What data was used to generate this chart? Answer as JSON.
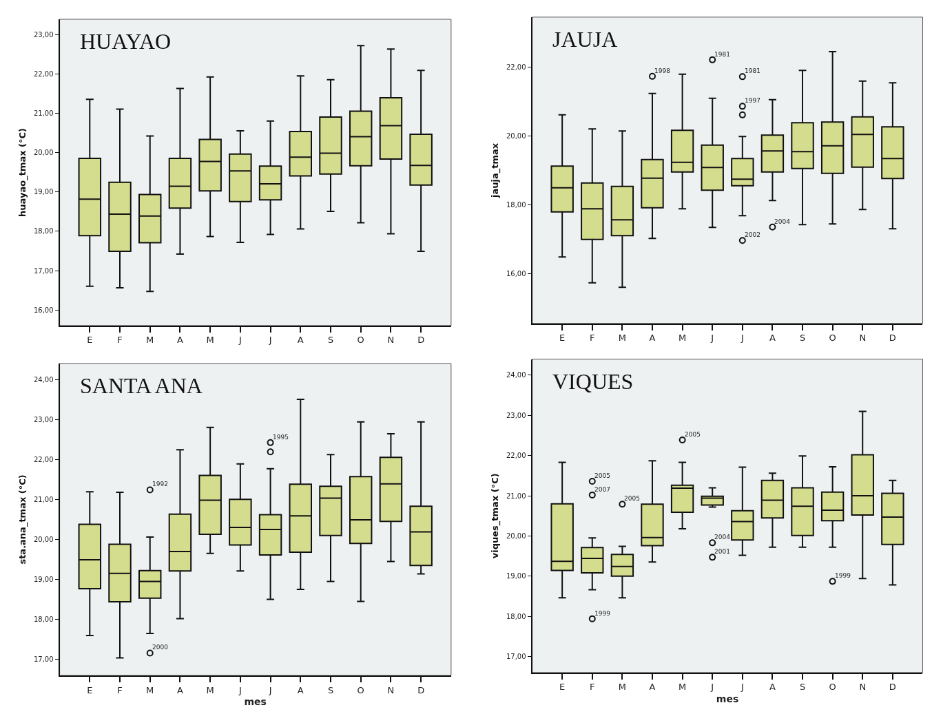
{
  "chart_data": [
    {
      "type": "box",
      "title": "HUAYAO",
      "ylabel": "huayao_tmax (°C)",
      "categories": [
        "E",
        "F",
        "M",
        "A",
        "M",
        "J",
        "J",
        "A",
        "S",
        "O",
        "N",
        "D"
      ],
      "ylim": [
        15.6,
        23.4
      ],
      "yticks": [
        {
          "value": 16,
          "label": "16,00"
        },
        {
          "value": 17,
          "label": "17,00"
        },
        {
          "value": 18,
          "label": "18,00"
        },
        {
          "value": 19,
          "label": "19,00"
        },
        {
          "value": 20,
          "label": "20,00"
        },
        {
          "value": 21,
          "label": "21,00"
        },
        {
          "value": 22,
          "label": "22,00"
        },
        {
          "value": 23,
          "label": "23,00"
        }
      ],
      "grid": false,
      "series": [
        {
          "color": "#d4dc8e",
          "boxes": [
            {
              "low": 16.6,
              "q1": 17.89,
              "median": 18.82,
              "q3": 19.86,
              "high": 21.36
            },
            {
              "low": 16.56,
              "q1": 17.49,
              "median": 18.44,
              "q3": 19.25,
              "high": 21.11
            },
            {
              "low": 16.47,
              "q1": 17.71,
              "median": 18.39,
              "q3": 18.94,
              "high": 20.43
            },
            {
              "low": 17.42,
              "q1": 18.59,
              "median": 19.15,
              "q3": 19.86,
              "high": 21.64
            },
            {
              "low": 17.87,
              "q1": 19.03,
              "median": 19.78,
              "q3": 20.34,
              "high": 21.93
            },
            {
              "low": 17.72,
              "q1": 18.76,
              "median": 19.54,
              "q3": 19.97,
              "high": 20.56
            },
            {
              "low": 17.92,
              "q1": 18.8,
              "median": 19.21,
              "q3": 19.66,
              "high": 20.81
            },
            {
              "low": 18.06,
              "q1": 19.41,
              "median": 19.89,
              "q3": 20.54,
              "high": 21.96
            },
            {
              "low": 18.51,
              "q1": 19.46,
              "median": 19.99,
              "q3": 20.91,
              "high": 21.86
            },
            {
              "low": 18.22,
              "q1": 19.67,
              "median": 20.41,
              "q3": 21.06,
              "high": 22.73
            },
            {
              "low": 17.94,
              "q1": 19.84,
              "median": 20.69,
              "q3": 21.4,
              "high": 22.64
            },
            {
              "low": 17.49,
              "q1": 19.18,
              "median": 19.68,
              "q3": 20.47,
              "high": 22.1
            }
          ]
        }
      ]
    },
    {
      "type": "box",
      "title": "JAUJA",
      "ylabel": "jauja_tmax",
      "categories": [
        "E",
        "F",
        "M",
        "A",
        "M",
        "J",
        "J",
        "A",
        "S",
        "O",
        "N",
        "D"
      ],
      "ylim": [
        14.55,
        23.45
      ],
      "yticks": [
        {
          "value": 16,
          "label": "16,00"
        },
        {
          "value": 18,
          "label": "18,00"
        },
        {
          "value": 20,
          "label": "20,00"
        },
        {
          "value": 22,
          "label": "22,00"
        }
      ],
      "grid": false,
      "annotations": [
        "1998",
        "1981",
        "1981",
        "1997",
        "2002",
        "2004"
      ],
      "series": [
        {
          "color": "#d4dc8e",
          "boxes": [
            {
              "low": 16.48,
              "q1": 17.79,
              "median": 18.49,
              "q3": 19.12,
              "high": 20.61
            },
            {
              "low": 15.73,
              "q1": 16.99,
              "median": 17.88,
              "q3": 18.63,
              "high": 20.2
            },
            {
              "low": 15.6,
              "q1": 17.1,
              "median": 17.56,
              "q3": 18.53,
              "high": 20.14
            },
            {
              "low": 17.02,
              "q1": 17.91,
              "median": 18.77,
              "q3": 19.31,
              "high": 21.23,
              "outliers": [
                21.73
              ]
            },
            {
              "low": 17.88,
              "q1": 18.95,
              "median": 19.23,
              "q3": 20.16,
              "high": 21.79
            },
            {
              "low": 17.34,
              "q1": 18.42,
              "median": 19.08,
              "q3": 19.73,
              "high": 21.09,
              "outliers": [
                22.21
              ]
            },
            {
              "low": 17.68,
              "q1": 18.55,
              "median": 18.74,
              "q3": 19.34,
              "high": 19.98,
              "outliers": [
                21.72,
                20.86,
                20.61,
                16.96
              ]
            },
            {
              "low": 18.12,
              "q1": 18.95,
              "median": 19.56,
              "q3": 20.02,
              "high": 21.05,
              "outliers": [
                17.35
              ]
            },
            {
              "low": 17.42,
              "q1": 19.05,
              "median": 19.54,
              "q3": 20.38,
              "high": 21.9
            },
            {
              "low": 17.44,
              "q1": 18.91,
              "median": 19.71,
              "q3": 20.4,
              "high": 22.45
            },
            {
              "low": 17.86,
              "q1": 19.09,
              "median": 20.04,
              "q3": 20.55,
              "high": 21.59
            },
            {
              "low": 17.3,
              "q1": 18.76,
              "median": 19.34,
              "q3": 20.26,
              "high": 21.54
            }
          ]
        }
      ]
    },
    {
      "type": "box",
      "title": "SANTA ANA",
      "xlabel": "mes",
      "ylabel": "sta.ana_tmax (°C)",
      "categories": [
        "E",
        "F",
        "M",
        "A",
        "M",
        "J",
        "J",
        "A",
        "S",
        "O",
        "N",
        "D"
      ],
      "ylim": [
        16.6,
        24.4
      ],
      "yticks": [
        {
          "value": 17,
          "label": "17,00"
        },
        {
          "value": 18,
          "label": "18,00"
        },
        {
          "value": 19,
          "label": "19,00"
        },
        {
          "value": 20,
          "label": "20,00"
        },
        {
          "value": 21,
          "label": "21,00"
        },
        {
          "value": 22,
          "label": "22,00"
        },
        {
          "value": 23,
          "label": "23,00"
        },
        {
          "value": 24,
          "label": "24,00"
        }
      ],
      "grid": false,
      "annotations": [
        "1992",
        "2000",
        "1995"
      ],
      "series": [
        {
          "color": "#d4dc8e",
          "boxes": [
            {
              "low": 17.6,
              "q1": 18.77,
              "median": 19.49,
              "q3": 20.38,
              "high": 21.19
            },
            {
              "low": 17.04,
              "q1": 18.44,
              "median": 19.15,
              "q3": 19.88,
              "high": 21.18
            },
            {
              "low": 17.65,
              "q1": 18.53,
              "median": 18.95,
              "q3": 19.22,
              "high": 20.06,
              "outliers": [
                21.24,
                17.16
              ]
            },
            {
              "low": 18.02,
              "q1": 19.21,
              "median": 19.7,
              "q3": 20.63,
              "high": 22.24
            },
            {
              "low": 19.65,
              "q1": 20.13,
              "median": 20.98,
              "q3": 21.6,
              "high": 22.8
            },
            {
              "low": 19.21,
              "q1": 19.86,
              "median": 20.3,
              "q3": 21.0,
              "high": 21.89
            },
            {
              "low": 18.5,
              "q1": 19.61,
              "median": 20.25,
              "q3": 20.62,
              "high": 21.77,
              "outliers": [
                22.42,
                22.19
              ]
            },
            {
              "low": 18.75,
              "q1": 19.68,
              "median": 20.59,
              "q3": 21.38,
              "high": 23.5
            },
            {
              "low": 18.95,
              "q1": 20.1,
              "median": 21.03,
              "q3": 21.33,
              "high": 22.12
            },
            {
              "low": 18.45,
              "q1": 19.9,
              "median": 20.49,
              "q3": 21.57,
              "high": 22.94
            },
            {
              "low": 19.45,
              "q1": 20.45,
              "median": 21.39,
              "q3": 22.05,
              "high": 22.64
            },
            {
              "low": 19.14,
              "q1": 19.35,
              "median": 20.19,
              "q3": 20.83,
              "high": 22.94
            }
          ]
        }
      ]
    },
    {
      "type": "box",
      "title": "VIQUES",
      "xlabel": "mes",
      "ylabel": "viques_tmax (°C)",
      "categories": [
        "E",
        "F",
        "M",
        "A",
        "M",
        "J",
        "J",
        "A",
        "S",
        "O",
        "N",
        "D"
      ],
      "ylim": [
        16.6,
        24.4
      ],
      "yticks": [
        {
          "value": 17,
          "label": "17,00"
        },
        {
          "value": 18,
          "label": "18,00"
        },
        {
          "value": 19,
          "label": "19,00"
        },
        {
          "value": 20,
          "label": "20,00"
        },
        {
          "value": 21,
          "label": "21,00"
        },
        {
          "value": 22,
          "label": "22,00"
        },
        {
          "value": 23,
          "label": "23,00"
        },
        {
          "value": 24,
          "label": "24,00"
        }
      ],
      "grid": false,
      "annotations": [
        "2005",
        "2007",
        "1999",
        "2005",
        "2005",
        "2004",
        "2001",
        "1999"
      ],
      "series": [
        {
          "color": "#d4dc8e",
          "boxes": [
            {
              "low": 18.46,
              "q1": 19.14,
              "median": 19.37,
              "q3": 20.8,
              "high": 21.83
            },
            {
              "low": 18.66,
              "q1": 19.08,
              "median": 19.44,
              "q3": 19.71,
              "high": 19.95,
              "outliers": [
                21.36,
                21.02,
                17.94
              ]
            },
            {
              "low": 18.46,
              "q1": 19.0,
              "median": 19.24,
              "q3": 19.54,
              "high": 19.74,
              "outliers": [
                20.79
              ]
            },
            {
              "low": 19.35,
              "q1": 19.76,
              "median": 19.96,
              "q3": 20.79,
              "high": 21.87
            },
            {
              "low": 20.18,
              "q1": 20.59,
              "median": 21.19,
              "q3": 21.26,
              "high": 21.83,
              "outliers": [
                22.39
              ]
            },
            {
              "low": 20.72,
              "q1": 20.77,
              "median": 20.94,
              "q3": 20.99,
              "high": 21.2,
              "outliers": [
                19.83,
                19.47
              ]
            },
            {
              "low": 19.52,
              "q1": 19.9,
              "median": 20.36,
              "q3": 20.63,
              "high": 21.71
            },
            {
              "low": 19.72,
              "q1": 20.45,
              "median": 20.89,
              "q3": 21.38,
              "high": 21.56
            },
            {
              "low": 19.72,
              "q1": 20.01,
              "median": 20.74,
              "q3": 21.2,
              "high": 21.99
            },
            {
              "low": 19.72,
              "q1": 20.38,
              "median": 20.64,
              "q3": 21.09,
              "high": 21.72,
              "outliers": [
                18.87
              ]
            },
            {
              "low": 18.94,
              "q1": 20.52,
              "median": 21.0,
              "q3": 22.02,
              "high": 23.1
            },
            {
              "low": 18.78,
              "q1": 19.79,
              "median": 20.47,
              "q3": 21.06,
              "high": 21.38
            }
          ]
        }
      ]
    }
  ]
}
